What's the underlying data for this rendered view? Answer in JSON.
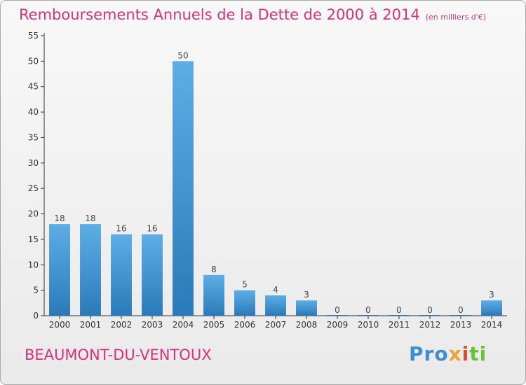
{
  "title": "Remboursements Annuels de la Dette de 2000 à 2014",
  "subtitle": "(en milliers d'€)",
  "commune": "BEAUMONT-DU-VENTOUX",
  "logo": {
    "parts": [
      "Pro",
      "x",
      "i",
      "ti"
    ]
  },
  "colors": {
    "title": "#d8307e",
    "bar_top": "#5daee6",
    "bar_bottom": "#2a7ab9",
    "axis": "#333333"
  },
  "chart_data": {
    "type": "bar",
    "categories": [
      "2000",
      "2001",
      "2002",
      "2003",
      "2004",
      "2005",
      "2006",
      "2007",
      "2008",
      "2009",
      "2010",
      "2011",
      "2012",
      "2013",
      "2014"
    ],
    "values": [
      18,
      18,
      16,
      16,
      50,
      8,
      5,
      4,
      3,
      0,
      0,
      0,
      0,
      0,
      3
    ],
    "data_labels": [
      "18",
      "18",
      "16",
      "16",
      "50",
      "8",
      "5",
      "4",
      "3",
      "0",
      "0",
      "0",
      "0",
      "0",
      "3"
    ],
    "y_ticks": [
      "0",
      "5",
      "10",
      "15",
      "20",
      "25",
      "30",
      "35",
      "40",
      "45",
      "50",
      "55"
    ],
    "ylim": [
      0,
      55
    ],
    "grid": false,
    "legend": "none"
  }
}
